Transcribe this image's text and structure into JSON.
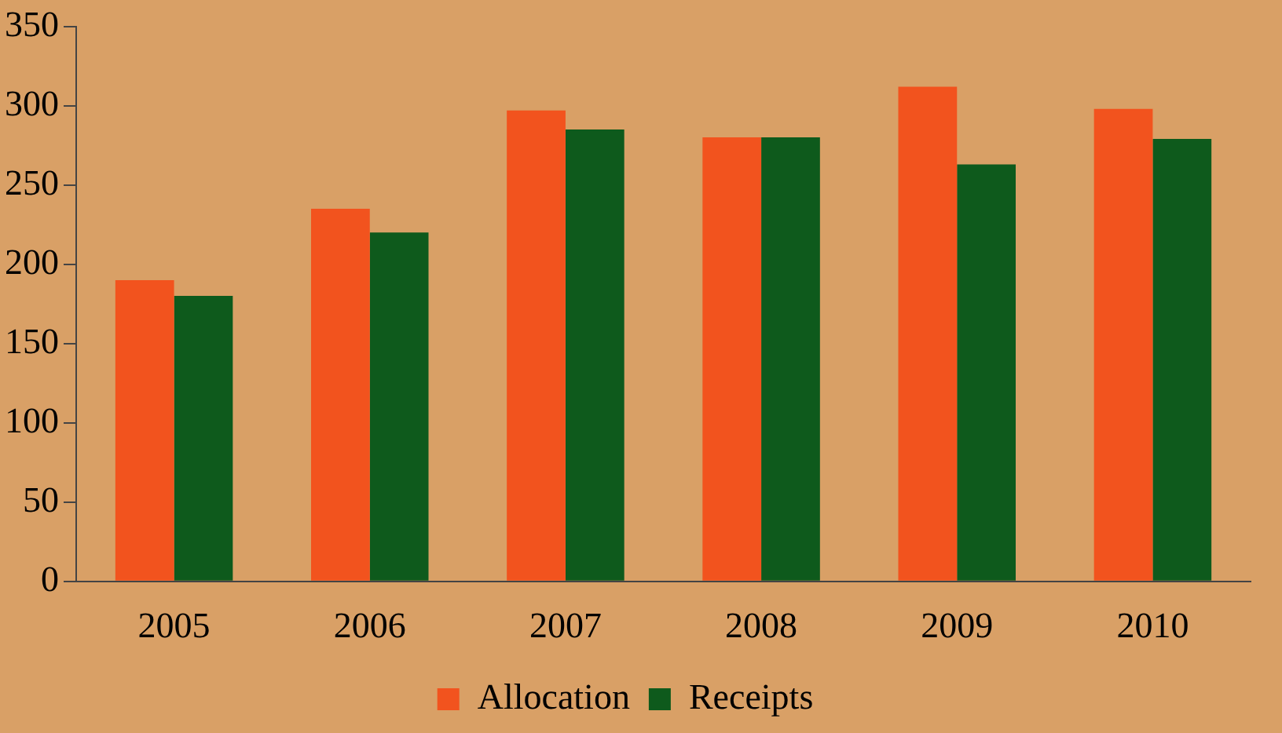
{
  "chart_data": {
    "type": "bar",
    "categories": [
      "2005",
      "2006",
      "2007",
      "2008",
      "2009",
      "2010"
    ],
    "series": [
      {
        "name": "Allocation",
        "color": "#f2531e",
        "values": [
          190,
          235,
          297,
          280,
          312,
          298
        ]
      },
      {
        "name": "Receipts",
        "color": "#0e5a1c",
        "values": [
          180,
          220,
          285,
          280,
          263,
          279
        ]
      }
    ],
    "ylim": [
      0,
      350
    ],
    "yticks": [
      0,
      50,
      100,
      150,
      200,
      250,
      300,
      350
    ],
    "grid": false,
    "legend": "bottom"
  }
}
